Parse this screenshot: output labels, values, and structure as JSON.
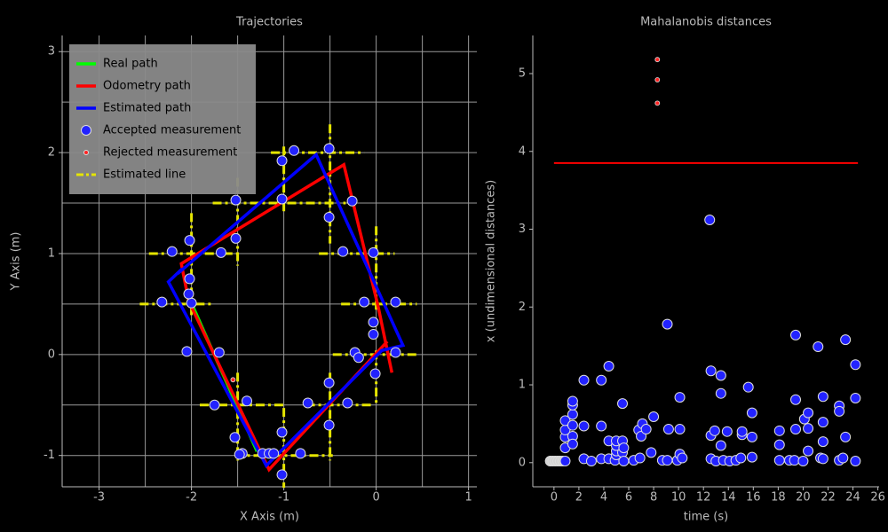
{
  "chart_data": [
    {
      "type": "line",
      "title": "Trajectories",
      "xlabel": "X Axis (m)",
      "ylabel": "Y Axis (m)",
      "xlim": [
        -3.4,
        1.09
      ],
      "ylim": [
        -1.31,
        3.16
      ],
      "xticks": [
        -3,
        -2,
        -1,
        0,
        1
      ],
      "yticks": [
        -1,
        0,
        1,
        2,
        3
      ],
      "xgrid": [
        -3,
        -2.5,
        -2,
        -1.5,
        -1,
        -0.5,
        0,
        0.5,
        1
      ],
      "ygrid": [
        -1,
        -0.5,
        0,
        0.5,
        1,
        1.5,
        2,
        2.5,
        3
      ],
      "grid": true,
      "legend": "upper left",
      "series": [
        {
          "name": "Real path",
          "color": "#00ff00",
          "style": "line",
          "x": [
            -2.01,
            -1.29
          ],
          "y": [
            0.53,
            -0.96
          ]
        },
        {
          "name": "Odometry path",
          "color": "#ff0000",
          "style": "line",
          "x": [
            0.17,
            0.02,
            -0.35,
            -2.11,
            -2.03,
            -1.16,
            0.12
          ],
          "y": [
            -0.18,
            0.48,
            1.88,
            0.9,
            0.53,
            -1.14,
            0.13
          ]
        },
        {
          "name": "Estimated path",
          "color": "#0000ff",
          "style": "line",
          "x": [
            -2.1,
            -2.25,
            -1.19,
            0.06,
            0.29,
            -0.65,
            -2.15
          ],
          "y": [
            0.85,
            0.72,
            -1.1,
            0.04,
            0.09,
            1.98,
            0.8
          ]
        },
        {
          "name": "Accepted measurement",
          "color": "#2222ff",
          "style": "marker",
          "x": [
            -0.89,
            -0.51,
            -1.02,
            -0.26,
            -1.52,
            -1.02,
            -0.51,
            -2.02,
            -1.52,
            -2.21,
            -1.68,
            -0.36,
            -0.03,
            -2.02,
            -2.32,
            -2.0,
            -0.13,
            0.21,
            -0.03,
            -0.03,
            -2.05,
            -1.7,
            -0.23,
            -0.19,
            0.21,
            -0.01,
            -0.51,
            -1.4,
            -1.75,
            -0.74,
            -0.31,
            -1.53,
            -0.51,
            -1.02,
            -1.45,
            -1.23,
            -1.16,
            -1.11,
            -0.82,
            -1.02,
            -2.03,
            -1.48
          ],
          "y": [
            2.02,
            2.04,
            1.92,
            1.52,
            1.53,
            1.54,
            1.36,
            1.13,
            1.15,
            1.02,
            1.01,
            1.02,
            1.01,
            0.75,
            0.52,
            0.51,
            0.52,
            0.52,
            0.32,
            0.2,
            0.03,
            0.02,
            0.02,
            -0.03,
            0.02,
            -0.19,
            -0.28,
            -0.46,
            -0.5,
            -0.48,
            -0.48,
            -0.82,
            -0.7,
            -0.77,
            -0.98,
            -0.98,
            -0.98,
            -0.98,
            -0.98,
            -1.19,
            0.6,
            -0.99
          ]
        },
        {
          "name": "Rejected measurement",
          "color": "#ff2222",
          "style": "small-marker",
          "x": [
            -1.55
          ],
          "y": [
            -0.25
          ]
        },
        {
          "name": "Estimated line",
          "color": "#e5e500",
          "style": "dashdot",
          "x": [
            -2,
            -2,
            null,
            -1.5,
            -1.5,
            null,
            -1.5,
            -1.5,
            null,
            -1,
            -1,
            null,
            -1,
            -1,
            null,
            -0.5,
            -0.5,
            null,
            -0.5,
            -0.5,
            null,
            0,
            0,
            null,
            0,
            0,
            null,
            -1.14,
            -0.13,
            null,
            -1.77,
            -0.33,
            null,
            -2.46,
            -1.48,
            null,
            -0.62,
            0.2,
            null,
            -2.56,
            -1.77,
            null,
            -0.38,
            0.44,
            null,
            -0.47,
            0.44,
            null,
            -1.91,
            -1.0,
            null,
            -0.76,
            -0.04,
            null,
            -1.53,
            -0.47
          ],
          "y": [
            1.4,
            0.39,
            null,
            1.75,
            0.88,
            null,
            -0.18,
            -1.05,
            null,
            2.06,
            1.4,
            null,
            -0.53,
            -1.32,
            null,
            2.28,
            1.1,
            null,
            -0.18,
            -1.05,
            null,
            1.27,
            0.44,
            null,
            0.04,
            -0.48,
            null,
            2,
            2,
            null,
            1.5,
            1.5,
            null,
            1,
            1,
            null,
            1,
            1,
            null,
            0.5,
            0.5,
            null,
            0.5,
            0.5,
            null,
            0,
            0,
            null,
            -0.5,
            -0.5,
            null,
            -0.5,
            -0.5,
            null,
            -1,
            -1
          ]
        }
      ]
    },
    {
      "type": "scatter",
      "title": "Mahalanobis distances",
      "xlabel": "time (s)",
      "ylabel": "x (undimensional distances)",
      "xlim": [
        -1.7,
        26.1
      ],
      "ylim": [
        -0.31,
        5.49
      ],
      "xticks": [
        0,
        2,
        4,
        6,
        8,
        10,
        12,
        14,
        16,
        18,
        20,
        22,
        24,
        26
      ],
      "yticks": [
        0,
        1,
        2,
        3,
        4,
        5
      ],
      "grid": false,
      "series": [
        {
          "color": "#ff0000",
          "style": "thin-line",
          "x": [
            0,
            24.4
          ],
          "y": [
            3.85,
            3.85
          ]
        },
        {
          "color": "#d3d3d3",
          "style": "marker",
          "x": [
            -0.3,
            -0.1,
            0.1,
            0.3,
            0.5,
            0.7
          ],
          "y": [
            0.02,
            0.02,
            0.02,
            0.02,
            0.02,
            0.02
          ]
        },
        {
          "color": "#2222ff",
          "style": "marker",
          "x": [
            0.9,
            0.9,
            0.9,
            0.9,
            0.9,
            1.5,
            1.5,
            1.5,
            1.5,
            1.5,
            1.5,
            2.4,
            2.4,
            2.4,
            3.0,
            3.8,
            3.8,
            3.8,
            4.4,
            4.4,
            4.4,
            4.9,
            5.0,
            5.0,
            5.0,
            5.0,
            5.5,
            5.5,
            5.5,
            5.6,
            5.6,
            6.4,
            6.8,
            6.9,
            7.0,
            7.1,
            7.4,
            7.8,
            8.0,
            8.7,
            9.1,
            9.1,
            9.2,
            9.9,
            10.1,
            10.1,
            10.1,
            10.3,
            12.5,
            12.6,
            12.6,
            12.6,
            12.9,
            13.0,
            13.4,
            13.4,
            13.4,
            13.6,
            13.9,
            14.1,
            14.6,
            15.0,
            15.1,
            15.1,
            15.6,
            15.9,
            15.9,
            15.9,
            18.1,
            18.1,
            18.1,
            18.9,
            19.3,
            19.4,
            19.4,
            19.4,
            20.0,
            20.1,
            20.4,
            20.4,
            20.4,
            21.2,
            21.4,
            21.6,
            21.6,
            21.6,
            21.6,
            22.9,
            22.9,
            22.9,
            23.2,
            23.4,
            23.4,
            24.2,
            24.2,
            24.2
          ],
          "y": [
            0.02,
            0.19,
            0.33,
            0.42,
            0.54,
            0.62,
            0.74,
            0.79,
            0.48,
            0.34,
            0.24,
            0.47,
            0.05,
            1.06,
            0.02,
            1.06,
            0.05,
            0.47,
            1.24,
            0.28,
            0.05,
            0.03,
            0.1,
            0.15,
            0.22,
            0.28,
            0.76,
            0.28,
            0.13,
            0.02,
            0.19,
            0.03,
            0.42,
            0.06,
            0.34,
            0.5,
            0.43,
            0.13,
            0.59,
            0.03,
            0.03,
            1.78,
            0.43,
            0.03,
            0.43,
            0.84,
            0.11,
            0.06,
            3.12,
            1.18,
            0.35,
            0.05,
            0.41,
            0.02,
            1.12,
            0.89,
            0.22,
            0.03,
            0.4,
            0.02,
            0.03,
            0.06,
            0.36,
            0.4,
            0.97,
            0.64,
            0.33,
            0.07,
            0.41,
            0.23,
            0.03,
            0.03,
            0.03,
            1.64,
            0.81,
            0.43,
            0.02,
            0.56,
            0.64,
            0.44,
            0.15,
            1.49,
            0.06,
            0.05,
            0.85,
            0.52,
            0.27,
            0.73,
            0.66,
            0.03,
            0.06,
            1.58,
            0.33,
            1.26,
            0.83,
            0.02
          ]
        },
        {
          "color": "#ff2222",
          "style": "small-marker",
          "x": [
            8.3,
            8.3,
            8.3
          ],
          "y": [
            5.18,
            4.92,
            4.62
          ]
        }
      ]
    }
  ]
}
